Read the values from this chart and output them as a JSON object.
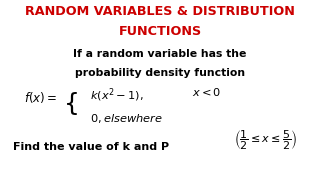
{
  "title_line1": "RANDOM VARIABLES & DISTRIBUTION",
  "title_line2": "FUNCTIONS",
  "title_color": "#cc0000",
  "body_color": "#000000",
  "bg_color": "#ffffff",
  "line1": "If a random variable has the",
  "line2": "probability density function",
  "formula_left": "$f(x) =$",
  "formula_row1": "$k(x^2-1),$",
  "formula_row1_cond": "$x < 0$",
  "formula_row2": "$0, \\mathit{elsewhere}$",
  "bottom_text1": "Find the value of k and P",
  "bottom_frac": "$\\left(\\frac{1}{2} \\leq x \\leq \\frac{5}{2}\\right)$"
}
